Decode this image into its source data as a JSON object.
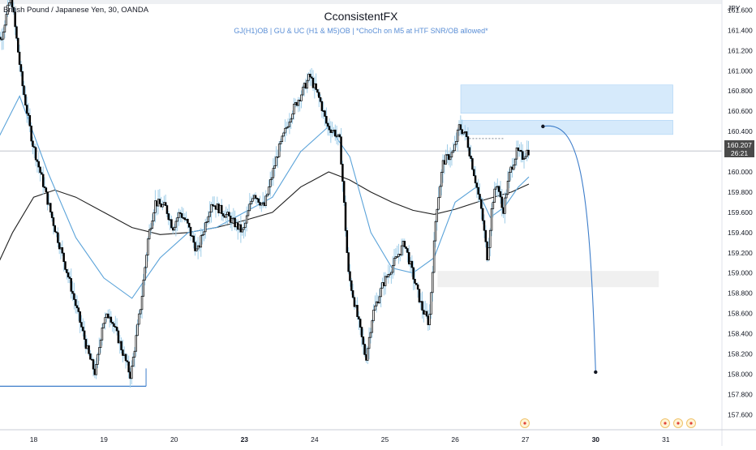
{
  "header": {
    "symbol": "British Pound / Japanese Yen, 30, OANDA",
    "watermark_title": "CconsistentFX",
    "watermark_subtitle": "GJ(H1)OB  |  GU & UC (H1 & M5)OB  |  *ChoCh on M5 at HTF SNR/OB allowed*"
  },
  "price_scale": {
    "currency": "JPY",
    "last_price": "160.207",
    "countdown": "26:21"
  },
  "colors": {
    "candle": "#000000",
    "ma_fast": "#5ba3d9",
    "ma_slow": "#1f1f1f",
    "zone_fill": "#d6eafb",
    "zone_border": "#a9d2f5",
    "demand_fill": "#f0f0f0",
    "projection": "#3d7dca",
    "axis_text": "#131722"
  },
  "chart_data": {
    "type": "candlestick",
    "title": "CconsistentFX",
    "subtitle": "GJ(H1)OB  |  GU & UC (H1 & M5)OB  |  *ChoCh on M5 at HTF SNR/OB allowed*",
    "ylabel": "JPY",
    "ylim": [
      157.45,
      161.7
    ],
    "y_ticks": [
      "161.600",
      "161.400",
      "161.200",
      "161.000",
      "160.800",
      "160.600",
      "160.400",
      "160.200",
      "160.000",
      "159.800",
      "159.600",
      "159.400",
      "159.200",
      "159.000",
      "158.800",
      "158.600",
      "158.400",
      "158.200",
      "158.000",
      "157.800",
      "157.600"
    ],
    "x_ticks": [
      {
        "label": "18",
        "day": 18,
        "bold": false
      },
      {
        "label": "19",
        "day": 19,
        "bold": false
      },
      {
        "label": "20",
        "day": 20,
        "bold": false
      },
      {
        "label": "23",
        "day": 21,
        "bold": true
      },
      {
        "label": "24",
        "day": 22,
        "bold": false
      },
      {
        "label": "25",
        "day": 23,
        "bold": false
      },
      {
        "label": "26",
        "day": 24,
        "bold": false
      },
      {
        "label": "27",
        "day": 25,
        "bold": false
      },
      {
        "label": "30",
        "day": 26,
        "bold": true
      },
      {
        "label": "31",
        "day": 27,
        "bold": false
      }
    ],
    "price_path": [
      [
        17.4,
        161.65
      ],
      [
        17.55,
        161.3
      ],
      [
        17.7,
        161.75
      ],
      [
        17.85,
        160.9
      ],
      [
        18.0,
        160.3
      ],
      [
        18.15,
        159.9
      ],
      [
        18.3,
        159.5
      ],
      [
        18.5,
        159.0
      ],
      [
        18.65,
        158.6
      ],
      [
        18.8,
        158.2
      ],
      [
        18.9,
        158.0
      ],
      [
        19.0,
        158.5
      ],
      [
        19.1,
        158.6
      ],
      [
        19.25,
        158.3
      ],
      [
        19.4,
        157.98
      ],
      [
        19.55,
        158.7
      ],
      [
        19.65,
        159.35
      ],
      [
        19.75,
        159.7
      ],
      [
        19.9,
        159.65
      ],
      [
        20.0,
        159.45
      ],
      [
        20.1,
        159.6
      ],
      [
        20.2,
        159.5
      ],
      [
        20.35,
        159.2
      ],
      [
        20.55,
        159.7
      ],
      [
        20.8,
        159.55
      ],
      [
        21.0,
        159.4
      ],
      [
        21.15,
        159.8
      ],
      [
        21.3,
        159.65
      ],
      [
        21.5,
        160.2
      ],
      [
        21.7,
        160.6
      ],
      [
        21.85,
        160.8
      ],
      [
        21.95,
        160.95
      ],
      [
        22.1,
        160.7
      ],
      [
        22.2,
        160.45
      ],
      [
        22.3,
        160.4
      ],
      [
        22.38,
        160.3
      ],
      [
        22.42,
        159.9
      ],
      [
        22.5,
        159.0
      ],
      [
        22.65,
        158.5
      ],
      [
        22.75,
        158.15
      ],
      [
        22.85,
        158.6
      ],
      [
        23.0,
        158.9
      ],
      [
        23.15,
        159.1
      ],
      [
        23.3,
        159.3
      ],
      [
        23.45,
        158.9
      ],
      [
        23.55,
        158.65
      ],
      [
        23.65,
        158.5
      ],
      [
        23.75,
        159.6
      ],
      [
        23.85,
        160.1
      ],
      [
        24.0,
        160.2
      ],
      [
        24.08,
        160.45
      ],
      [
        24.18,
        160.35
      ],
      [
        24.3,
        159.95
      ],
      [
        24.4,
        159.6
      ],
      [
        24.48,
        159.15
      ],
      [
        24.55,
        159.7
      ],
      [
        24.62,
        159.9
      ],
      [
        24.7,
        159.6
      ],
      [
        24.8,
        160.0
      ],
      [
        24.9,
        160.2
      ],
      [
        24.98,
        160.15
      ],
      [
        25.05,
        160.21
      ]
    ],
    "ma_fast": [
      [
        17.4,
        160.2
      ],
      [
        17.8,
        160.75
      ],
      [
        18.2,
        160.0
      ],
      [
        18.6,
        159.35
      ],
      [
        19.0,
        158.95
      ],
      [
        19.4,
        158.75
      ],
      [
        19.8,
        159.15
      ],
      [
        20.2,
        159.4
      ],
      [
        20.6,
        159.45
      ],
      [
        21.0,
        159.6
      ],
      [
        21.4,
        159.75
      ],
      [
        21.8,
        160.2
      ],
      [
        22.2,
        160.45
      ],
      [
        22.5,
        160.15
      ],
      [
        22.8,
        159.4
      ],
      [
        23.1,
        159.05
      ],
      [
        23.4,
        159.0
      ],
      [
        23.7,
        159.15
      ],
      [
        24.0,
        159.7
      ],
      [
        24.3,
        159.85
      ],
      [
        24.5,
        159.55
      ],
      [
        24.7,
        159.65
      ],
      [
        24.9,
        159.85
      ],
      [
        25.05,
        159.95
      ]
    ],
    "ma_slow": [
      [
        17.4,
        158.95
      ],
      [
        17.7,
        159.4
      ],
      [
        18.0,
        159.75
      ],
      [
        18.3,
        159.82
      ],
      [
        18.6,
        159.75
      ],
      [
        19.0,
        159.6
      ],
      [
        19.4,
        159.45
      ],
      [
        19.8,
        159.38
      ],
      [
        20.2,
        159.4
      ],
      [
        20.6,
        159.45
      ],
      [
        21.0,
        159.52
      ],
      [
        21.4,
        159.6
      ],
      [
        21.8,
        159.85
      ],
      [
        22.2,
        160.0
      ],
      [
        22.5,
        159.92
      ],
      [
        22.8,
        159.8
      ],
      [
        23.1,
        159.7
      ],
      [
        23.4,
        159.62
      ],
      [
        23.7,
        159.58
      ],
      [
        24.0,
        159.63
      ],
      [
        24.4,
        159.72
      ],
      [
        24.8,
        159.8
      ],
      [
        25.05,
        159.88
      ]
    ],
    "zones": [
      {
        "name": "supply-zone-upper",
        "x1": 24.08,
        "x2": 27.1,
        "y1": 160.58,
        "y2": 160.86
      },
      {
        "name": "supply-zone-lower",
        "x1": 24.08,
        "x2": 27.1,
        "y1": 160.37,
        "y2": 160.51
      },
      {
        "name": "demand-zone",
        "x1": 23.75,
        "x2": 26.9,
        "y1": 158.86,
        "y2": 159.02
      }
    ],
    "support_line": {
      "x1": 17.4,
      "x2": 19.6,
      "y": 157.88
    },
    "dashed_level": {
      "x1": 24.2,
      "x2": 24.7,
      "y": 160.33
    },
    "projection": {
      "x_start": 25.25,
      "y_start": 160.45,
      "x_end": 26.0,
      "y_end": 158.02
    },
    "current_price": 160.207
  }
}
